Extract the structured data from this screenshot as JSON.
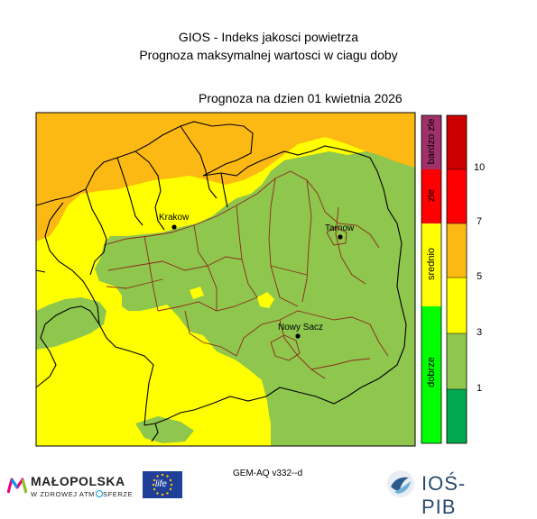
{
  "header": {
    "title_line1": "GIOS - Indeks jakosci powietrza",
    "title_line2": "Prognoza maksymalnej wartosci w ciagu doby",
    "forecast_date": "Prognoza na dzien  01 kwietnia 2026"
  },
  "map": {
    "cities": [
      {
        "name": "Krakow"
      },
      {
        "name": "Tarnow"
      },
      {
        "name": "Nowy Sacz"
      }
    ],
    "colors": {
      "dobrze": "#8ec64e",
      "srednio": "#ffff00",
      "zle": "#fdb913",
      "boundary_region": "#000000",
      "boundary_district": "#8b2a1a"
    }
  },
  "legend": {
    "categories": [
      {
        "label": "bardzo zle",
        "color": "#a0306a"
      },
      {
        "label": "zle",
        "color": "#ff0000"
      },
      {
        "label": "srednio",
        "color": "#ffff00"
      },
      {
        "label": "dobrze",
        "color": "#00ff00"
      }
    ],
    "scale_colors": [
      "#cc0000",
      "#ff0000",
      "#fdb913",
      "#ffff00",
      "#8ec64e",
      "#00a84f"
    ],
    "scale_ticks": [
      "10",
      "7",
      "5",
      "3",
      "1"
    ]
  },
  "footer": {
    "model_label": "GEM-AQ v332--d",
    "malopolska_name": "MAŁOPOLSKA",
    "malopolska_slogan_a": "W ZDROWEJ ATM",
    "malopolska_slogan_b": "SFERZE",
    "life_badge": "life",
    "ios_name": "IOŚ-PIB"
  }
}
